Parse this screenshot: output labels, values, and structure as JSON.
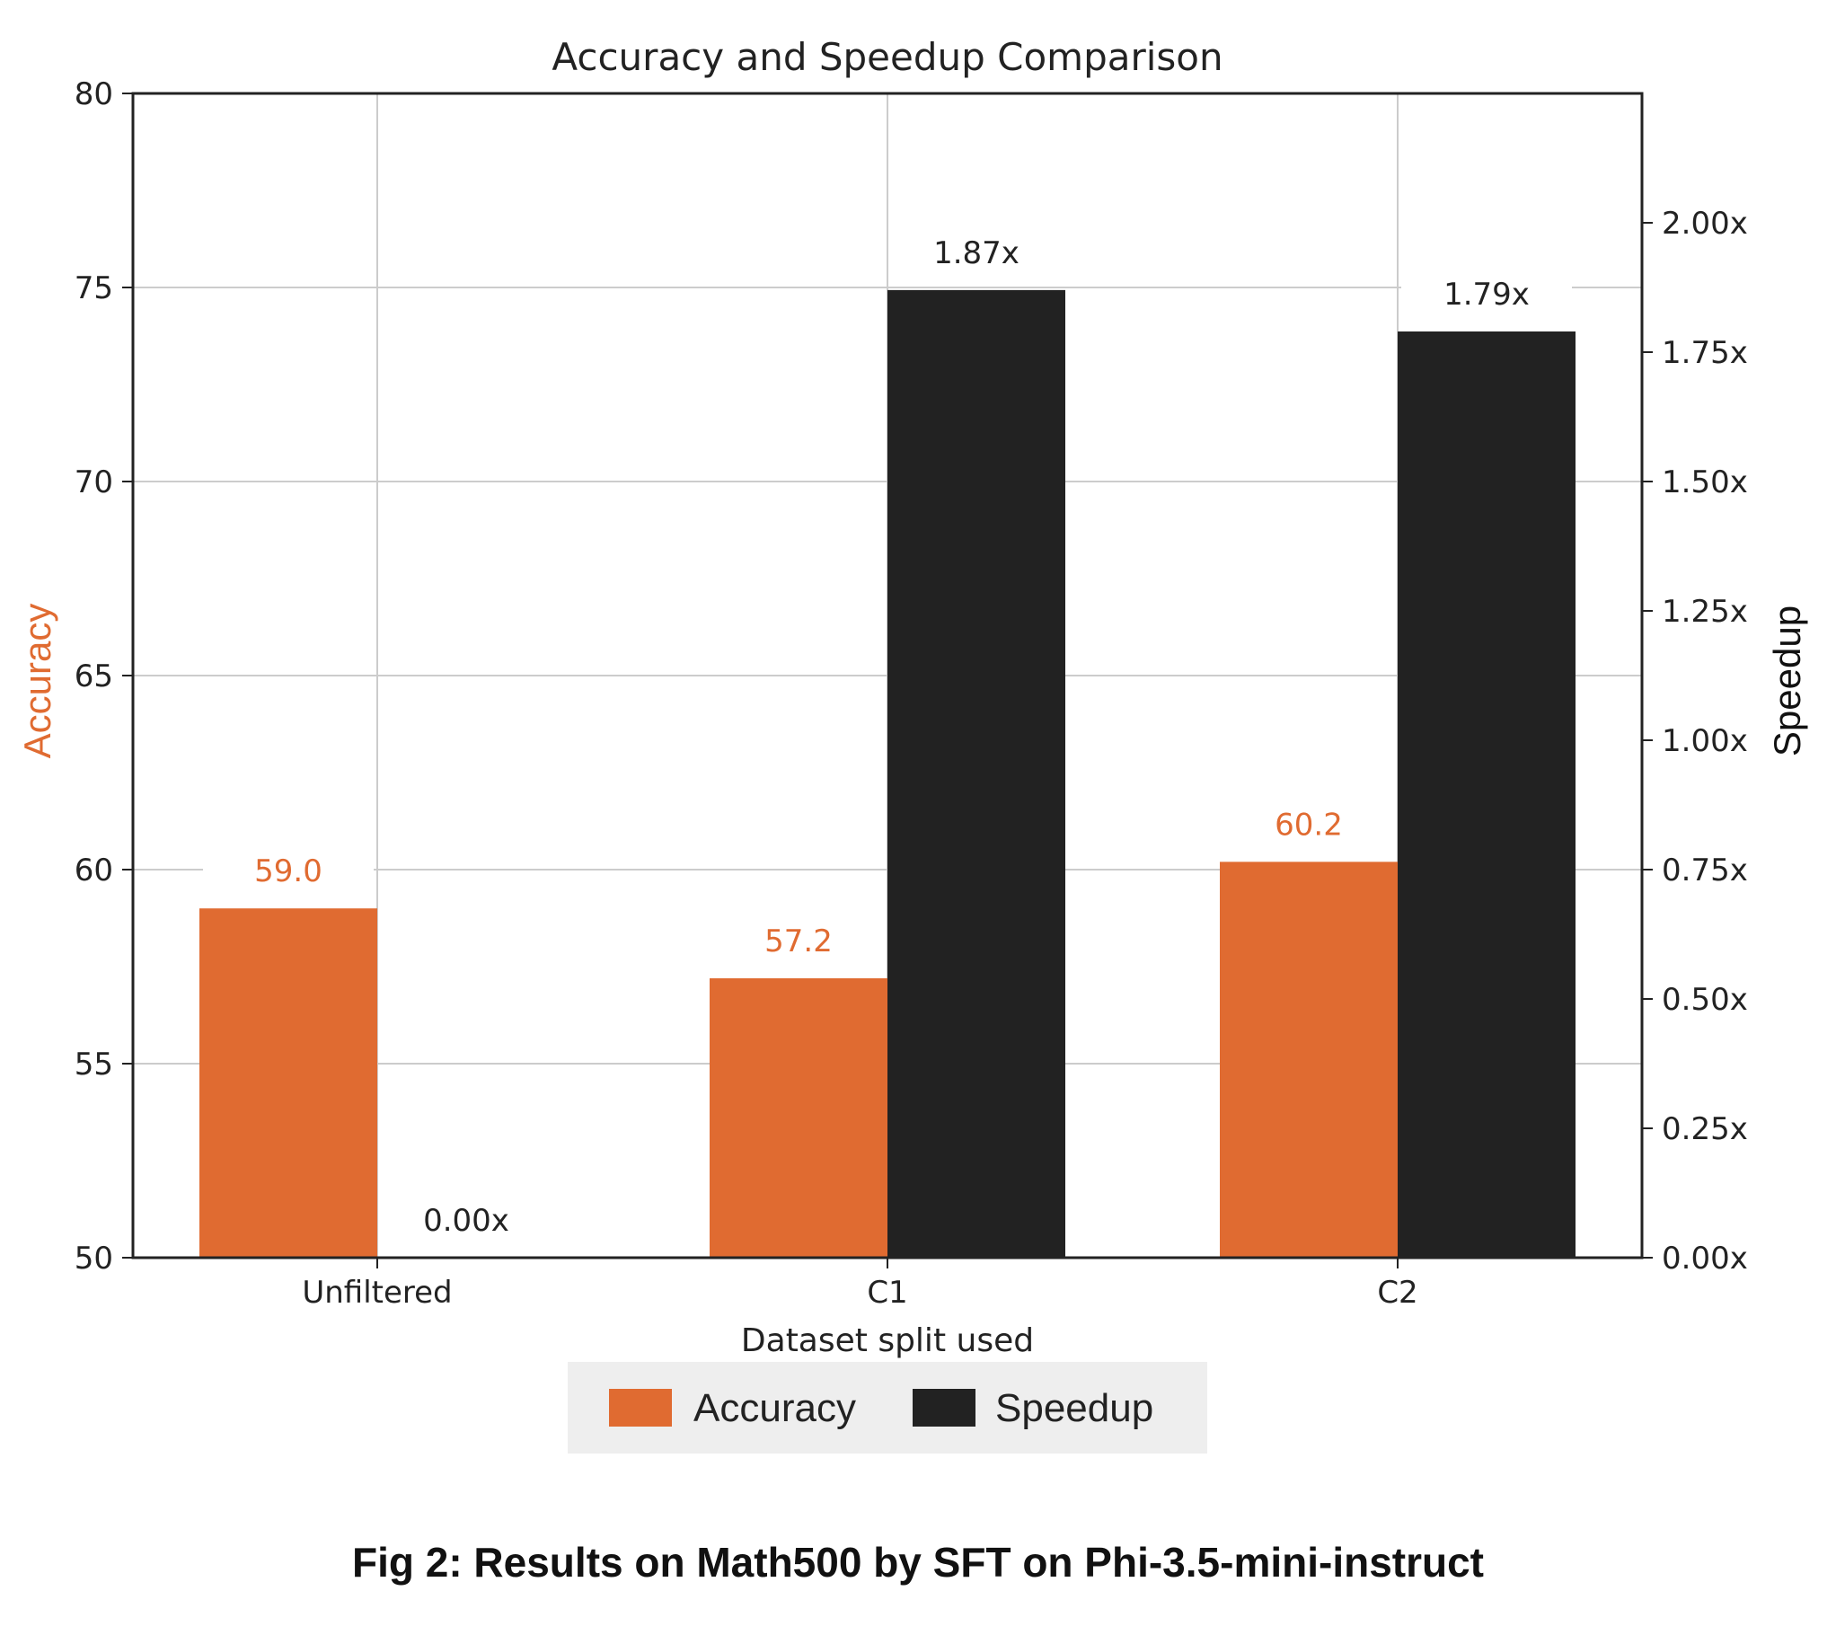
{
  "chart_data": {
    "type": "bar",
    "title": "Accuracy and Speedup Comparison",
    "xlabel": "Dataset split used",
    "ylabel_left": "Accuracy",
    "ylabel_right": "Speedup",
    "categories": [
      "Unfiltered",
      "C1",
      "C2"
    ],
    "series": [
      {
        "name": "Accuracy",
        "axis": "left",
        "color": "#e06b31",
        "values": [
          59.0,
          57.2,
          60.2
        ],
        "labels": [
          "59.0",
          "57.2",
          "60.2"
        ]
      },
      {
        "name": "Speedup",
        "axis": "right",
        "color": "#222222",
        "values": [
          0.0,
          1.87,
          1.79
        ],
        "labels": [
          "0.00x",
          "1.87x",
          "1.79x"
        ]
      }
    ],
    "ylim_left": [
      50,
      80
    ],
    "ylim_right": [
      0,
      2.25
    ],
    "yticks_left": [
      "50",
      "55",
      "60",
      "65",
      "70",
      "75",
      "80"
    ],
    "yticks_right": [
      "0.00x",
      "0.25x",
      "0.50x",
      "0.75x",
      "1.00x",
      "1.25x",
      "1.50x",
      "1.75x",
      "2.00x"
    ],
    "grid": true,
    "legend_position": "bottom-center",
    "ylabel_left_color": "#e06b31"
  },
  "caption": "Fig 2: Results on Math500 by SFT on Phi-3.5-mini-instruct"
}
